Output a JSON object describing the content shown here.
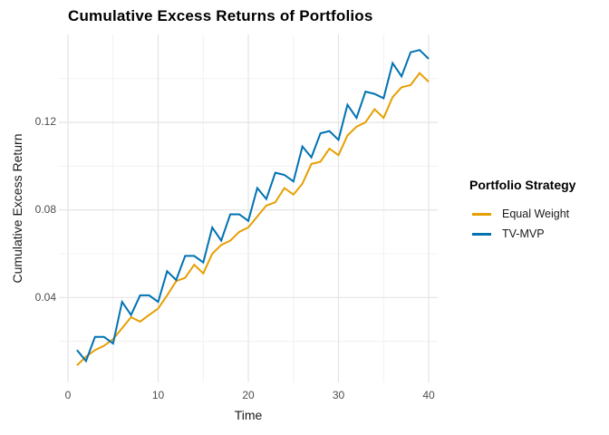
{
  "chart_data": {
    "type": "line",
    "title": "Cumulative Excess Returns of Portfolios",
    "xlabel": "Time",
    "ylabel": "Cumulative Excess Return",
    "grid": true,
    "legend_position": "right",
    "xlim": [
      -0.95,
      41.95
    ],
    "ylim": [
      0.002,
      0.16
    ],
    "x": [
      1,
      2,
      3,
      4,
      5,
      6,
      7,
      8,
      9,
      10,
      11,
      12,
      13,
      14,
      15,
      16,
      17,
      18,
      19,
      20,
      21,
      22,
      23,
      24,
      25,
      26,
      27,
      28,
      29,
      30,
      31,
      32,
      33,
      34,
      35,
      36,
      37,
      38,
      39,
      40
    ],
    "series": [
      {
        "name": "Equal Weight",
        "color": "#E69F00",
        "values": [
          0.009,
          0.013,
          0.016,
          0.018,
          0.021,
          0.026,
          0.031,
          0.029,
          0.032,
          0.035,
          0.041,
          0.0475,
          0.049,
          0.055,
          0.051,
          0.06,
          0.064,
          0.066,
          0.07,
          0.072,
          0.077,
          0.082,
          0.0835,
          0.09,
          0.087,
          0.092,
          0.101,
          0.102,
          0.108,
          0.105,
          0.114,
          0.118,
          0.12,
          0.126,
          0.122,
          0.1315,
          0.136,
          0.137,
          0.1425,
          0.1385
        ]
      },
      {
        "name": "TV-MVP",
        "color": "#0072B2",
        "values": [
          0.016,
          0.011,
          0.022,
          0.022,
          0.019,
          0.038,
          0.032,
          0.041,
          0.041,
          0.038,
          0.052,
          0.048,
          0.059,
          0.059,
          0.056,
          0.072,
          0.066,
          0.078,
          0.078,
          0.075,
          0.09,
          0.085,
          0.097,
          0.096,
          0.093,
          0.109,
          0.104,
          0.115,
          0.116,
          0.112,
          0.128,
          0.122,
          0.134,
          0.133,
          0.131,
          0.147,
          0.141,
          0.152,
          0.153,
          0.149
        ]
      }
    ],
    "x_ticks": [
      {
        "t": 0,
        "label": "0"
      },
      {
        "t": 10,
        "label": "10"
      },
      {
        "t": 20,
        "label": "20"
      },
      {
        "t": 30,
        "label": "30"
      },
      {
        "t": 40,
        "label": "40"
      }
    ],
    "y_ticks": [
      {
        "v": 0.04,
        "label": "0.04"
      },
      {
        "v": 0.08,
        "label": "0.08"
      },
      {
        "v": 0.12,
        "label": "0.12"
      }
    ],
    "x_minor": [
      5,
      15,
      25,
      35
    ],
    "y_minor": [
      0.02,
      0.06,
      0.1,
      0.14
    ]
  },
  "legend": {
    "title": "Portfolio Strategy",
    "items": [
      {
        "label": "Equal Weight",
        "color": "#E69F00"
      },
      {
        "label": "TV-MVP",
        "color": "#0072B2"
      }
    ]
  },
  "colors": {
    "background": "#FFFFFF",
    "grid_major": "#E4E4E4",
    "grid_minor": "#F0F0F0",
    "tick_text": "#4D4D4D"
  }
}
